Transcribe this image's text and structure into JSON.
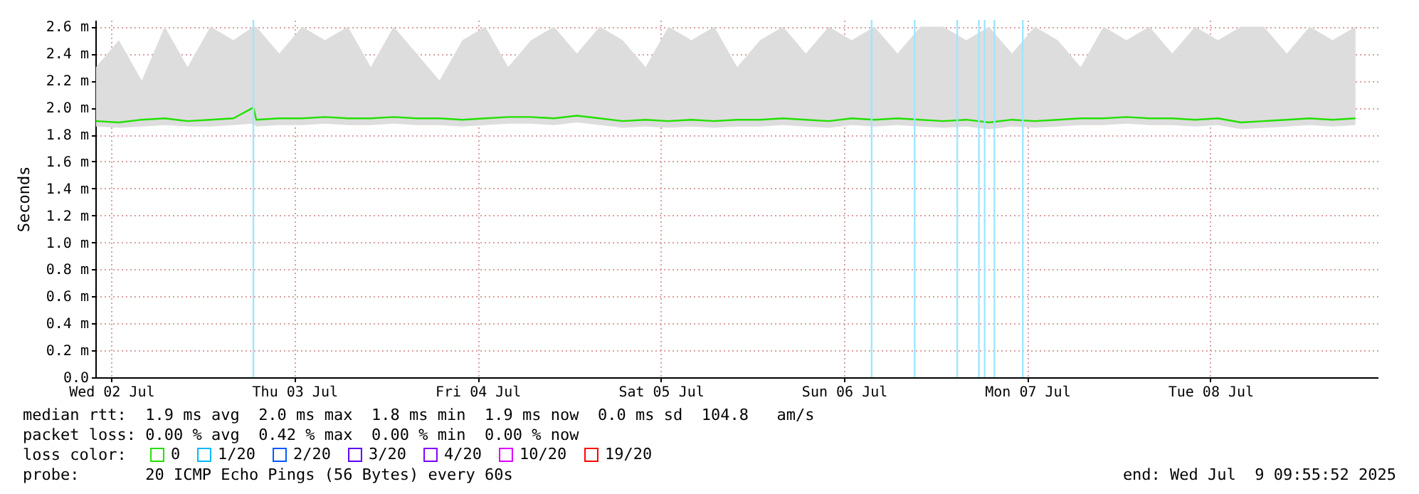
{
  "chart_data": {
    "type": "line",
    "ylabel": "Seconds",
    "xlim": [
      "2025-07-02T09:55",
      "2025-07-09T09:55"
    ],
    "xticks": [
      {
        "value": "2025-07-02T12:00",
        "label": "Wed 02 Jul"
      },
      {
        "value": "2025-07-03T12:00",
        "label": "Thu 03 Jul"
      },
      {
        "value": "2025-07-04T12:00",
        "label": "Fri 04 Jul"
      },
      {
        "value": "2025-07-05T12:00",
        "label": "Sat 05 Jul"
      },
      {
        "value": "2025-07-06T12:00",
        "label": "Sun 06 Jul"
      },
      {
        "value": "2025-07-07T12:00",
        "label": "Mon 07 Jul"
      },
      {
        "value": "2025-07-08T12:00",
        "label": "Tue 08 Jul"
      }
    ],
    "ylim": [
      0,
      2.65
    ],
    "yticks": [
      {
        "value": 0,
        "label": "0.0"
      },
      {
        "value": 0.2,
        "label": "0.2 m"
      },
      {
        "value": 0.4,
        "label": "0.4 m"
      },
      {
        "value": 0.6,
        "label": "0.6 m"
      },
      {
        "value": 0.8,
        "label": "0.8 m"
      },
      {
        "value": 1.0,
        "label": "1.0 m"
      },
      {
        "value": 1.2,
        "label": "1.2 m"
      },
      {
        "value": 1.4,
        "label": "1.4 m"
      },
      {
        "value": 1.6,
        "label": "1.6 m"
      },
      {
        "value": 1.8,
        "label": "1.8 m"
      },
      {
        "value": 2.0,
        "label": "2.0 m"
      },
      {
        "value": 2.2,
        "label": "2.2 m"
      },
      {
        "value": 2.4,
        "label": "2.4 m"
      },
      {
        "value": 2.6,
        "label": "2.6 m"
      }
    ],
    "grid": true,
    "legend": "bottom left",
    "legend_title": "loss color:",
    "series": [
      {
        "name": "0",
        "color": "#22e000",
        "x": [
          "2025-07-02T10:00",
          "2025-07-02T13:00",
          "2025-07-02T16:00",
          "2025-07-02T19:00",
          "2025-07-02T22:00",
          "2025-07-03T01:00",
          "2025-07-03T04:00",
          "2025-07-03T06:37",
          "2025-07-03T07:00",
          "2025-07-03T10:00",
          "2025-07-03T13:00",
          "2025-07-03T16:00",
          "2025-07-03T19:00",
          "2025-07-03T22:00",
          "2025-07-04T01:00",
          "2025-07-04T04:00",
          "2025-07-04T07:00",
          "2025-07-04T10:00",
          "2025-07-04T13:00",
          "2025-07-04T16:00",
          "2025-07-04T19:00",
          "2025-07-04T22:00",
          "2025-07-05T01:00",
          "2025-07-05T04:00",
          "2025-07-05T07:00",
          "2025-07-05T10:00",
          "2025-07-05T13:00",
          "2025-07-05T16:00",
          "2025-07-05T19:00",
          "2025-07-05T22:00",
          "2025-07-06T01:00",
          "2025-07-06T04:00",
          "2025-07-06T07:00",
          "2025-07-06T10:00",
          "2025-07-06T13:00",
          "2025-07-06T16:00",
          "2025-07-06T19:00",
          "2025-07-06T22:00",
          "2025-07-07T01:00",
          "2025-07-07T04:00",
          "2025-07-07T07:00",
          "2025-07-07T10:00",
          "2025-07-07T13:00",
          "2025-07-07T16:00",
          "2025-07-07T19:00",
          "2025-07-07T22:00",
          "2025-07-08T01:00",
          "2025-07-08T04:00",
          "2025-07-08T07:00",
          "2025-07-08T10:00",
          "2025-07-08T13:00",
          "2025-07-08T16:00",
          "2025-07-08T19:00",
          "2025-07-08T22:00",
          "2025-07-09T01:00",
          "2025-07-09T04:00",
          "2025-07-09T07:00"
        ],
        "values": [
          1.9,
          1.89,
          1.91,
          1.92,
          1.9,
          1.91,
          1.92,
          2.0,
          1.91,
          1.92,
          1.92,
          1.93,
          1.92,
          1.92,
          1.93,
          1.92,
          1.92,
          1.91,
          1.92,
          1.93,
          1.93,
          1.92,
          1.94,
          1.92,
          1.9,
          1.91,
          1.9,
          1.91,
          1.9,
          1.91,
          1.91,
          1.92,
          1.91,
          1.9,
          1.92,
          1.91,
          1.92,
          1.91,
          1.9,
          1.91,
          1.89,
          1.91,
          1.9,
          1.91,
          1.92,
          1.92,
          1.93,
          1.92,
          1.92,
          1.91,
          1.92,
          1.89,
          1.9,
          1.91,
          1.92,
          1.91,
          1.92
        ],
        "lower": [
          1.86,
          1.85,
          1.86,
          1.87,
          1.86,
          1.86,
          1.87,
          1.88,
          1.86,
          1.87,
          1.87,
          1.88,
          1.87,
          1.87,
          1.88,
          1.87,
          1.87,
          1.86,
          1.87,
          1.88,
          1.88,
          1.87,
          1.89,
          1.87,
          1.85,
          1.86,
          1.85,
          1.86,
          1.85,
          1.86,
          1.86,
          1.87,
          1.86,
          1.85,
          1.87,
          1.86,
          1.87,
          1.86,
          1.85,
          1.86,
          1.84,
          1.86,
          1.85,
          1.86,
          1.87,
          1.87,
          1.88,
          1.87,
          1.87,
          1.86,
          1.87,
          1.84,
          1.85,
          1.86,
          1.87,
          1.86,
          1.87
        ],
        "upper": [
          2.3,
          2.5,
          2.2,
          2.6,
          2.3,
          2.6,
          2.5,
          2.6,
          2.6,
          2.4,
          2.6,
          2.5,
          2.6,
          2.3,
          2.6,
          2.4,
          2.2,
          2.5,
          2.6,
          2.3,
          2.5,
          2.6,
          2.4,
          2.6,
          2.5,
          2.3,
          2.6,
          2.5,
          2.6,
          2.3,
          2.5,
          2.6,
          2.4,
          2.6,
          2.5,
          2.6,
          2.4,
          2.6,
          2.6,
          2.5,
          2.6,
          2.4,
          2.6,
          2.5,
          2.3,
          2.6,
          2.5,
          2.6,
          2.4,
          2.6,
          2.5,
          2.6,
          2.6,
          2.4,
          2.6,
          2.5,
          2.6
        ]
      },
      {
        "name": "1/20",
        "color": "#00b8ff"
      },
      {
        "name": "2/20",
        "color": "#0059ff"
      },
      {
        "name": "3/20",
        "color": "#5e00ff"
      },
      {
        "name": "4/20",
        "color": "#7e00ff"
      },
      {
        "name": "10/20",
        "color": "#dd00ff"
      },
      {
        "name": "19/20",
        "color": "#ff0000"
      }
    ],
    "ref_lines": [
      {
        "axis": "x",
        "value": "2025-07-03T06:37",
        "color": "#9fe6ff"
      },
      {
        "axis": "x",
        "value": "2025-07-06T15:37",
        "color": "#9fe6ff"
      },
      {
        "axis": "x",
        "value": "2025-07-06T21:15",
        "color": "#9fe6ff"
      },
      {
        "axis": "x",
        "value": "2025-07-07T02:50",
        "color": "#9fe6ff"
      },
      {
        "axis": "x",
        "value": "2025-07-07T05:40",
        "color": "#9fe6ff"
      },
      {
        "axis": "x",
        "value": "2025-07-07T06:25",
        "color": "#9fe6ff"
      },
      {
        "axis": "x",
        "value": "2025-07-07T07:42",
        "color": "#9fe6ff"
      },
      {
        "axis": "x",
        "value": "2025-07-07T11:25",
        "color": "#9fe6ff"
      }
    ],
    "annotations": [
      "median rtt:  1.9 ms avg  2.0 ms max  1.8 ms min  1.9 ms now  0.0 ms sd  104.8   am/s",
      "packet loss: 0.00 % avg  0.42 % max  0.00 % min  0.00 % now",
      "probe:       20 ICMP Echo Pings (56 Bytes) every 60s",
      "end: Wed Jul  9 09:55:52 2025"
    ]
  }
}
